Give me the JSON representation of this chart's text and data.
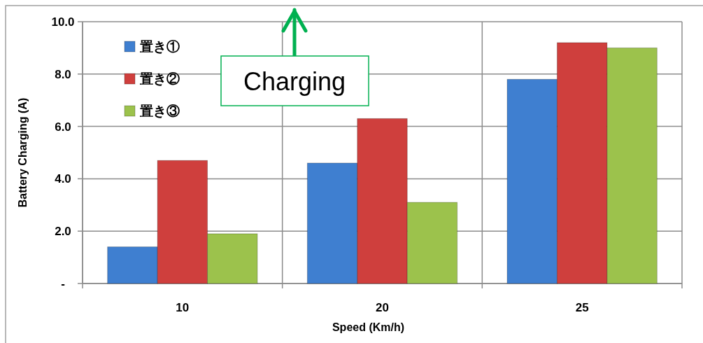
{
  "chart_data": {
    "type": "bar",
    "xlabel": "Speed (Km/h)",
    "ylabel": "Battery Charging  (A)",
    "categories": [
      "10",
      "20",
      "25"
    ],
    "series": [
      {
        "name": "置き①",
        "color": "#3f7fd0",
        "values": [
          1.4,
          4.6,
          7.8
        ]
      },
      {
        "name": "置き②",
        "color": "#cf3f3d",
        "values": [
          4.7,
          6.3,
          9.2
        ]
      },
      {
        "name": "置き③",
        "color": "#9cc24c",
        "values": [
          1.9,
          3.1,
          9.0
        ]
      }
    ],
    "ylim": [
      0,
      10
    ],
    "yticks": [
      {
        "value": 0,
        "label": "-"
      },
      {
        "value": 2,
        "label": "2.0"
      },
      {
        "value": 4,
        "label": "4.0"
      },
      {
        "value": 6,
        "label": "6.0"
      },
      {
        "value": 8,
        "label": "8.0"
      },
      {
        "value": 10,
        "label": "10.0"
      }
    ],
    "grid": true,
    "legend": "top left",
    "annotations": [
      "Charging"
    ]
  }
}
